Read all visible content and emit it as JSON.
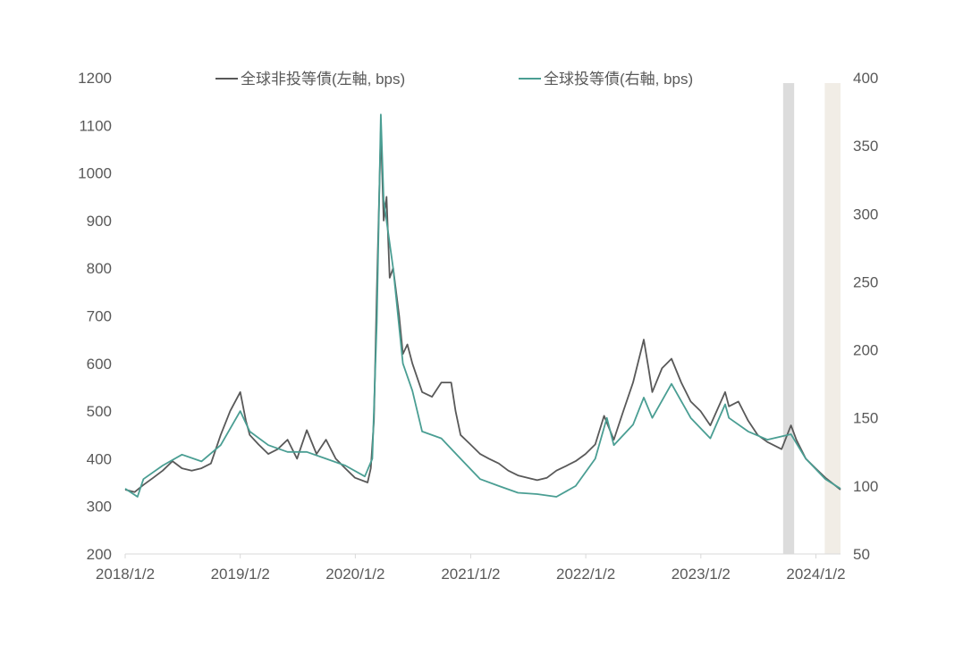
{
  "chart_data": {
    "type": "line",
    "title": "",
    "legend_placement": "top",
    "grid": false,
    "x_tick_labels": [
      "2018/1/2",
      "2019/1/2",
      "2020/1/2",
      "2021/1/2",
      "2022/1/2",
      "2023/1/2",
      "2024/1/2"
    ],
    "x_ticks": [
      "2018-01-02",
      "2019-01-02",
      "2020-01-02",
      "2021-01-02",
      "2022-01-02",
      "2023-01-02",
      "2024-01-02"
    ],
    "xlim": [
      "2018-01-02",
      "2024-03-20"
    ],
    "y_left": {
      "ylim": [
        200,
        1200
      ],
      "ticks": [
        200,
        300,
        400,
        500,
        600,
        700,
        800,
        900,
        1000,
        1100,
        1200
      ]
    },
    "y_right": {
      "ylim": [
        50,
        400
      ],
      "ticks": [
        50,
        100,
        150,
        200,
        250,
        300,
        350,
        400
      ]
    },
    "shaded_periods": [
      {
        "start": "2023-09-20",
        "end": "2023-10-25",
        "color": "#dcdcdc"
      },
      {
        "start": "2024-01-30",
        "end": "2024-03-20",
        "color": "#f1ede6"
      }
    ],
    "series": [
      {
        "name": "全球非投等債(左軸, bps)",
        "axis": "left",
        "color": "#595959",
        "points": [
          [
            "2018-01-02",
            335
          ],
          [
            "2018-02-01",
            330
          ],
          [
            "2018-03-01",
            345
          ],
          [
            "2018-04-01",
            360
          ],
          [
            "2018-05-01",
            375
          ],
          [
            "2018-06-01",
            395
          ],
          [
            "2018-07-01",
            380
          ],
          [
            "2018-08-01",
            375
          ],
          [
            "2018-09-01",
            380
          ],
          [
            "2018-10-01",
            390
          ],
          [
            "2018-11-01",
            450
          ],
          [
            "2018-12-01",
            500
          ],
          [
            "2019-01-02",
            540
          ],
          [
            "2019-01-20",
            480
          ],
          [
            "2019-02-01",
            450
          ],
          [
            "2019-03-01",
            430
          ],
          [
            "2019-04-01",
            410
          ],
          [
            "2019-05-01",
            420
          ],
          [
            "2019-06-01",
            440
          ],
          [
            "2019-07-01",
            400
          ],
          [
            "2019-08-01",
            460
          ],
          [
            "2019-09-01",
            410
          ],
          [
            "2019-10-01",
            440
          ],
          [
            "2019-11-01",
            400
          ],
          [
            "2019-12-01",
            380
          ],
          [
            "2020-01-01",
            360
          ],
          [
            "2020-02-10",
            350
          ],
          [
            "2020-02-20",
            380
          ],
          [
            "2020-03-01",
            480
          ],
          [
            "2020-03-10",
            750
          ],
          [
            "2020-03-23",
            1090
          ],
          [
            "2020-04-01",
            900
          ],
          [
            "2020-04-10",
            950
          ],
          [
            "2020-04-20",
            780
          ],
          [
            "2020-05-01",
            800
          ],
          [
            "2020-05-20",
            700
          ],
          [
            "2020-06-01",
            620
          ],
          [
            "2020-06-15",
            640
          ],
          [
            "2020-07-01",
            600
          ],
          [
            "2020-08-01",
            540
          ],
          [
            "2020-09-01",
            530
          ],
          [
            "2020-10-01",
            560
          ],
          [
            "2020-11-01",
            560
          ],
          [
            "2020-11-15",
            500
          ],
          [
            "2020-12-01",
            450
          ],
          [
            "2021-01-01",
            430
          ],
          [
            "2021-02-01",
            410
          ],
          [
            "2021-03-01",
            400
          ],
          [
            "2021-04-01",
            390
          ],
          [
            "2021-05-01",
            375
          ],
          [
            "2021-06-01",
            365
          ],
          [
            "2021-07-01",
            360
          ],
          [
            "2021-08-01",
            355
          ],
          [
            "2021-09-01",
            360
          ],
          [
            "2021-10-01",
            375
          ],
          [
            "2021-11-01",
            385
          ],
          [
            "2021-12-01",
            395
          ],
          [
            "2022-01-01",
            410
          ],
          [
            "2022-02-01",
            430
          ],
          [
            "2022-03-01",
            490
          ],
          [
            "2022-04-01",
            440
          ],
          [
            "2022-05-01",
            500
          ],
          [
            "2022-06-01",
            560
          ],
          [
            "2022-07-05",
            650
          ],
          [
            "2022-07-20",
            590
          ],
          [
            "2022-08-01",
            540
          ],
          [
            "2022-09-01",
            590
          ],
          [
            "2022-10-01",
            610
          ],
          [
            "2022-11-01",
            560
          ],
          [
            "2022-12-01",
            520
          ],
          [
            "2023-01-01",
            500
          ],
          [
            "2023-02-01",
            470
          ],
          [
            "2023-03-20",
            540
          ],
          [
            "2023-04-01",
            510
          ],
          [
            "2023-05-01",
            520
          ],
          [
            "2023-06-01",
            480
          ],
          [
            "2023-07-01",
            450
          ],
          [
            "2023-08-01",
            435
          ],
          [
            "2023-09-15",
            420
          ],
          [
            "2023-10-15",
            470
          ],
          [
            "2023-11-01",
            440
          ],
          [
            "2023-12-01",
            400
          ],
          [
            "2024-01-01",
            380
          ],
          [
            "2024-02-01",
            360
          ],
          [
            "2024-03-20",
            335
          ]
        ]
      },
      {
        "name": "全球投等債(右軸, bps)",
        "axis": "right",
        "color": "#4a9e93",
        "points": [
          [
            "2018-01-02",
            98
          ],
          [
            "2018-02-10",
            92
          ],
          [
            "2018-03-01",
            105
          ],
          [
            "2018-05-01",
            115
          ],
          [
            "2018-07-01",
            123
          ],
          [
            "2018-09-01",
            118
          ],
          [
            "2018-11-01",
            130
          ],
          [
            "2019-01-02",
            155
          ],
          [
            "2019-02-01",
            140
          ],
          [
            "2019-04-01",
            130
          ],
          [
            "2019-06-01",
            125
          ],
          [
            "2019-08-01",
            125
          ],
          [
            "2019-10-01",
            120
          ],
          [
            "2019-12-01",
            115
          ],
          [
            "2020-02-01",
            107
          ],
          [
            "2020-02-25",
            120
          ],
          [
            "2020-03-10",
            220
          ],
          [
            "2020-03-23",
            373
          ],
          [
            "2020-04-01",
            310
          ],
          [
            "2020-05-01",
            260
          ],
          [
            "2020-06-01",
            190
          ],
          [
            "2020-07-01",
            170
          ],
          [
            "2020-08-01",
            140
          ],
          [
            "2020-10-01",
            135
          ],
          [
            "2020-12-01",
            120
          ],
          [
            "2021-02-01",
            105
          ],
          [
            "2021-04-01",
            100
          ],
          [
            "2021-06-01",
            95
          ],
          [
            "2021-08-01",
            94
          ],
          [
            "2021-10-01",
            92
          ],
          [
            "2021-12-01",
            100
          ],
          [
            "2022-02-01",
            120
          ],
          [
            "2022-03-10",
            150
          ],
          [
            "2022-04-01",
            130
          ],
          [
            "2022-06-01",
            145
          ],
          [
            "2022-07-05",
            165
          ],
          [
            "2022-08-01",
            150
          ],
          [
            "2022-10-01",
            175
          ],
          [
            "2022-12-01",
            150
          ],
          [
            "2023-02-01",
            135
          ],
          [
            "2023-03-20",
            160
          ],
          [
            "2023-04-01",
            150
          ],
          [
            "2023-06-01",
            140
          ],
          [
            "2023-08-01",
            134
          ],
          [
            "2023-10-15",
            138
          ],
          [
            "2023-12-01",
            120
          ],
          [
            "2024-02-01",
            105
          ],
          [
            "2024-03-20",
            98
          ]
        ]
      }
    ]
  }
}
